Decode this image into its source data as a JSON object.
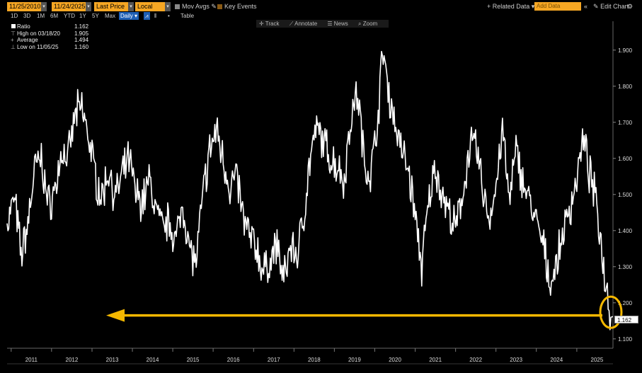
{
  "toolbar": {
    "start_date": "11/25/2010",
    "end_date": "11/24/2025",
    "price_field": "Last Price",
    "currency": "Local CCY",
    "mov_avgs": "Mov Avgs",
    "key_events": "Key Events",
    "related_data": "+ Related Data",
    "add_data_placeholder": "Add Data",
    "edit_chart": "Edit Chart",
    "ranges": [
      "1D",
      "3D",
      "1M",
      "6M",
      "YTD",
      "1Y",
      "5Y",
      "Max"
    ],
    "frequency": "Daily",
    "table": "Table"
  },
  "tools": {
    "track": "Track",
    "annotate": "Annotate",
    "news": "News",
    "zoom": "Zoom"
  },
  "legend": [
    {
      "label": "Ratio",
      "value": "1.162"
    },
    {
      "label": "High on 03/18/20",
      "value": "1.905"
    },
    {
      "label": "Average",
      "value": "1.494"
    },
    {
      "label": "Low on 11/05/25",
      "value": "1.160"
    }
  ],
  "last_value_tag": "1.162",
  "colors": {
    "background": "#000000",
    "line": "#ffffff",
    "highlight": "#f5b800",
    "toolbar_accent": "#f5a623"
  },
  "chart_data": {
    "type": "line",
    "title": "",
    "xlabel": "",
    "ylabel": "",
    "xlim": [
      "2010-11-25",
      "2025-11-24"
    ],
    "ylim": [
      1.08,
      1.98
    ],
    "y_ticks": [
      "1.100",
      "1.200",
      "1.300",
      "1.400",
      "1.500",
      "1.600",
      "1.700",
      "1.800",
      "1.900"
    ],
    "x_ticks": [
      "2011",
      "2012",
      "2013",
      "2014",
      "2015",
      "2016",
      "2017",
      "2018",
      "2019",
      "2020",
      "2021",
      "2022",
      "2023",
      "2024",
      "2025"
    ],
    "grid": false,
    "annotation": "arrow pointing to circled latest value",
    "series": [
      {
        "name": "Ratio",
        "x": [
          "2010-11-25",
          "2011-02-01",
          "2011-04-01",
          "2011-06-01",
          "2011-08-01",
          "2011-10-01",
          "2011-12-01",
          "2012-02-01",
          "2012-04-01",
          "2012-06-01",
          "2012-08-01",
          "2012-10-01",
          "2012-12-01",
          "2013-02-01",
          "2013-04-01",
          "2013-06-01",
          "2013-08-01",
          "2013-10-01",
          "2013-12-01",
          "2014-02-01",
          "2014-04-01",
          "2014-06-01",
          "2014-08-01",
          "2014-10-01",
          "2014-12-01",
          "2015-02-01",
          "2015-04-01",
          "2015-06-01",
          "2015-08-01",
          "2015-10-01",
          "2015-12-01",
          "2016-02-01",
          "2016-04-01",
          "2016-06-01",
          "2016-08-01",
          "2016-10-01",
          "2016-12-01",
          "2017-02-01",
          "2017-04-01",
          "2017-06-01",
          "2017-08-01",
          "2017-10-01",
          "2017-12-01",
          "2018-02-01",
          "2018-04-01",
          "2018-06-01",
          "2018-08-01",
          "2018-10-01",
          "2018-12-01",
          "2019-02-01",
          "2019-04-01",
          "2019-06-01",
          "2019-08-01",
          "2019-10-01",
          "2019-12-01",
          "2020-02-01",
          "2020-03-18",
          "2020-05-01",
          "2020-07-01",
          "2020-09-01",
          "2020-11-01",
          "2021-01-01",
          "2021-03-01",
          "2021-05-01",
          "2021-07-01",
          "2021-09-01",
          "2021-11-01",
          "2022-01-01",
          "2022-03-01",
          "2022-05-01",
          "2022-07-01",
          "2022-09-01",
          "2022-11-01",
          "2023-01-01",
          "2023-03-01",
          "2023-05-01",
          "2023-07-01",
          "2023-09-01",
          "2023-11-01",
          "2024-01-01",
          "2024-03-01",
          "2024-05-01",
          "2024-07-01",
          "2024-09-01",
          "2024-11-01",
          "2025-01-01",
          "2025-03-01",
          "2025-05-01",
          "2025-07-01",
          "2025-09-01",
          "2025-11-05",
          "2025-11-24"
        ],
        "y": [
          1.42,
          1.49,
          1.33,
          1.42,
          1.57,
          1.6,
          1.47,
          1.51,
          1.62,
          1.6,
          1.72,
          1.74,
          1.66,
          1.55,
          1.49,
          1.57,
          1.49,
          1.55,
          1.6,
          1.5,
          1.48,
          1.54,
          1.46,
          1.4,
          1.43,
          1.37,
          1.48,
          1.35,
          1.31,
          1.5,
          1.62,
          1.68,
          1.6,
          1.52,
          1.55,
          1.43,
          1.38,
          1.35,
          1.28,
          1.32,
          1.36,
          1.26,
          1.36,
          1.33,
          1.45,
          1.61,
          1.68,
          1.64,
          1.6,
          1.58,
          1.54,
          1.72,
          1.78,
          1.58,
          1.56,
          1.73,
          1.905,
          1.79,
          1.7,
          1.62,
          1.57,
          1.44,
          1.3,
          1.47,
          1.58,
          1.5,
          1.45,
          1.4,
          1.49,
          1.62,
          1.64,
          1.52,
          1.43,
          1.52,
          1.68,
          1.48,
          1.62,
          1.54,
          1.48,
          1.42,
          1.36,
          1.26,
          1.3,
          1.4,
          1.46,
          1.55,
          1.65,
          1.55,
          1.47,
          1.3,
          1.16,
          1.162
        ]
      }
    ]
  }
}
